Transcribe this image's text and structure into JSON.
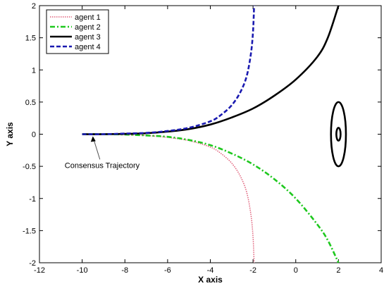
{
  "chart_data": {
    "type": "line",
    "xlabel": "X axis",
    "ylabel": "Y axis",
    "xlim": [
      -12,
      4
    ],
    "ylim": [
      -2,
      2
    ],
    "xticks": [
      "-12",
      "-10",
      "-8",
      "-6",
      "-4",
      "-2",
      "0",
      "2",
      "4"
    ],
    "yticks": [
      "-2",
      "-1.5",
      "-1",
      "-0.5",
      "0",
      "0.5",
      "1",
      "1.5",
      "2"
    ],
    "legend_position": "top-left",
    "series": [
      {
        "name": "agent 1",
        "color": "#e0607a",
        "style": "dotted",
        "x": [
          -10,
          -9,
          -8,
          -7,
          -6,
          -5,
          -4,
          -3.5,
          -3,
          -2.6,
          -2.3,
          -2.1,
          -2.0,
          -1.95
        ],
        "y": [
          0,
          0,
          -0.01,
          -0.02,
          -0.05,
          -0.1,
          -0.2,
          -0.3,
          -0.45,
          -0.65,
          -0.9,
          -1.25,
          -1.6,
          -2.0
        ]
      },
      {
        "name": "agent 2",
        "color": "#1ec81e",
        "style": "dashdot",
        "x": [
          -10,
          -9,
          -8,
          -7,
          -6,
          -5,
          -4,
          -3,
          -2,
          -1,
          0,
          1,
          1.5,
          2.0
        ],
        "y": [
          0,
          0,
          -0.005,
          -0.02,
          -0.04,
          -0.09,
          -0.17,
          -0.3,
          -0.47,
          -0.7,
          -1.0,
          -1.4,
          -1.65,
          -2.0
        ]
      },
      {
        "name": "agent 3",
        "color": "#000000",
        "style": "solid",
        "x": [
          -10,
          -9,
          -8,
          -7,
          -6,
          -5,
          -4,
          -3,
          -2,
          -1,
          0,
          1,
          1.5,
          2.0
        ],
        "y": [
          0,
          0,
          0.005,
          0.015,
          0.04,
          0.08,
          0.15,
          0.26,
          0.4,
          0.6,
          0.85,
          1.2,
          1.5,
          2.0
        ]
      },
      {
        "name": "agent 4",
        "color": "#1a1ab0",
        "style": "dashed",
        "x": [
          -10,
          -9,
          -8,
          -7,
          -6,
          -5,
          -4,
          -3.5,
          -3,
          -2.6,
          -2.3,
          -2.1,
          -2.0,
          -1.95
        ],
        "y": [
          0,
          0,
          0.01,
          0.02,
          0.05,
          0.1,
          0.2,
          0.3,
          0.45,
          0.65,
          0.9,
          1.25,
          1.6,
          2.0
        ]
      }
    ],
    "ellipses": [
      {
        "cx": 2.0,
        "cy": 0,
        "rx": 0.35,
        "ry": 0.5,
        "color": "#000000"
      },
      {
        "cx": 2.0,
        "cy": 0,
        "rx": 0.1,
        "ry": 0.1,
        "color": "#000000"
      }
    ],
    "annotation": {
      "text": "Consensus Trajectory",
      "point_x": -9.5,
      "point_y": -0.02
    }
  }
}
